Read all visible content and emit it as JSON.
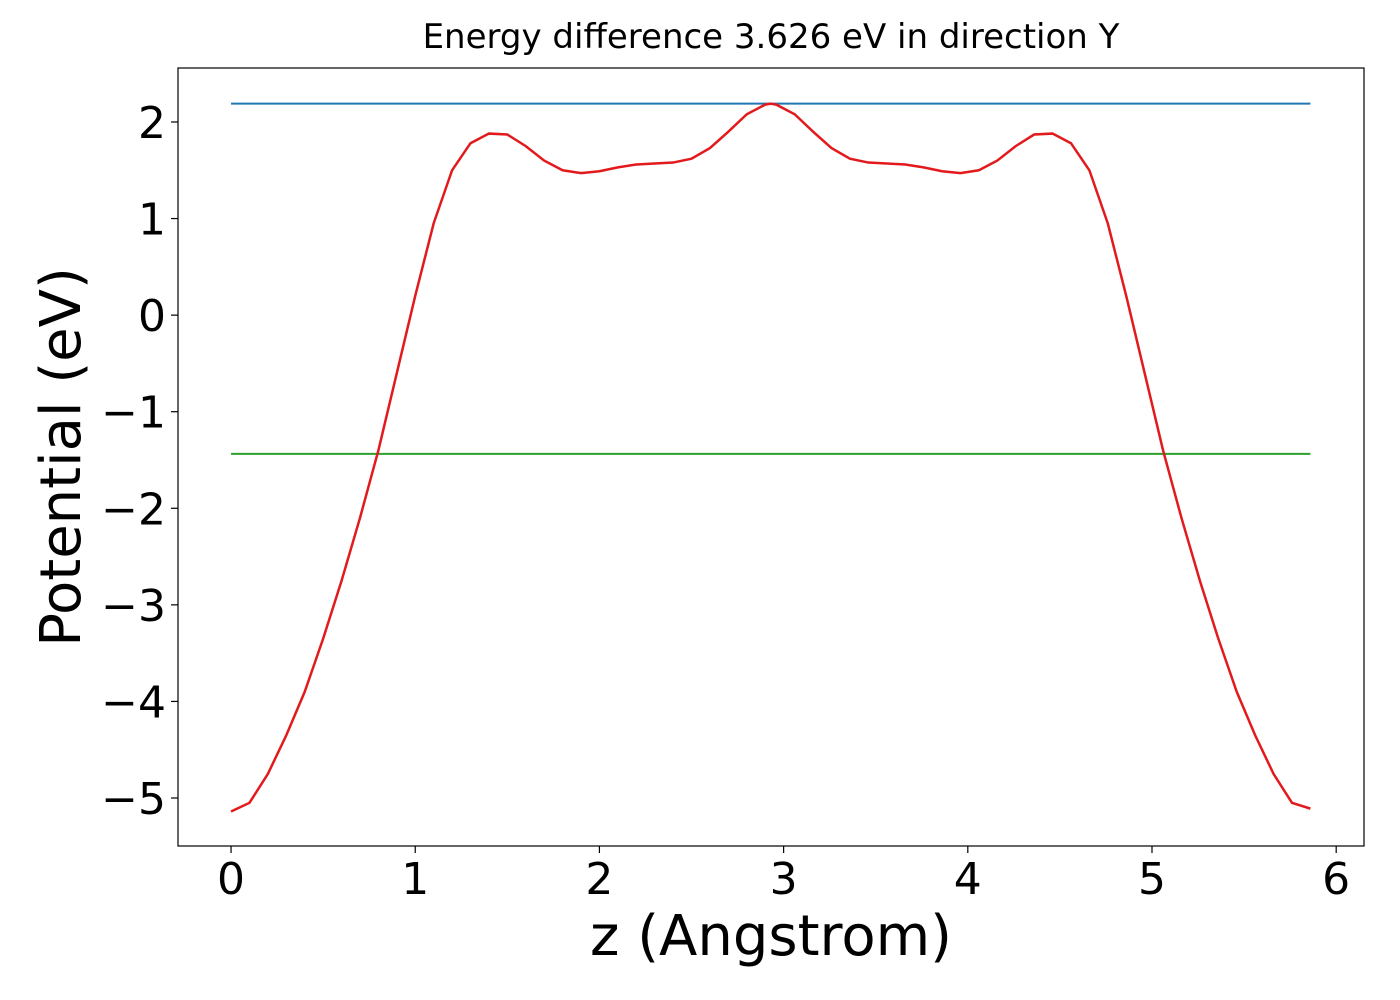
{
  "chart_data": {
    "type": "line",
    "title": "Energy difference 3.626 eV in direction Y",
    "xlabel": "z (Angstrom)",
    "ylabel": "Potential (eV)",
    "x": [
      0,
      0.1,
      0.2,
      0.3,
      0.4,
      0.5,
      0.6,
      0.7,
      0.8,
      0.9,
      1.0,
      1.1,
      1.2,
      1.3,
      1.4,
      1.5,
      1.6,
      1.7,
      1.8,
      1.9,
      2.0,
      2.1,
      2.2,
      2.3,
      2.4,
      2.5,
      2.6,
      2.7,
      2.8,
      2.9,
      2.93,
      2.96,
      3.06,
      3.16,
      3.26,
      3.36,
      3.46,
      3.56,
      3.66,
      3.76,
      3.86,
      3.96,
      4.06,
      4.16,
      4.26,
      4.36,
      4.46,
      4.56,
      4.66,
      4.76,
      4.86,
      4.96,
      5.06,
      5.16,
      5.26,
      5.36,
      5.46,
      5.56,
      5.66,
      5.76,
      5.86
    ],
    "series": [
      {
        "color": "#1f77b4",
        "x": [
          0,
          5.86
        ],
        "values": [
          2.19,
          2.19
        ]
      },
      {
        "color": "#2ca02c",
        "x": [
          0,
          5.86
        ],
        "values": [
          -1.436,
          -1.436
        ]
      },
      {
        "color": "#e31a1c",
        "values": [
          -5.14,
          -5.05,
          -4.75,
          -4.35,
          -3.9,
          -3.35,
          -2.75,
          -2.1,
          -1.4,
          -0.6,
          0.2,
          0.95,
          1.5,
          1.78,
          1.88,
          1.87,
          1.75,
          1.6,
          1.5,
          1.47,
          1.49,
          1.53,
          1.56,
          1.57,
          1.58,
          1.62,
          1.73,
          1.9,
          2.08,
          2.18,
          2.19,
          2.18,
          2.08,
          1.9,
          1.73,
          1.62,
          1.58,
          1.57,
          1.56,
          1.53,
          1.49,
          1.47,
          1.5,
          1.6,
          1.75,
          1.87,
          1.88,
          1.78,
          1.5,
          0.95,
          0.2,
          -0.6,
          -1.4,
          -2.1,
          -2.75,
          -3.35,
          -3.9,
          -4.35,
          -4.75,
          -5.05,
          -5.11
        ]
      }
    ],
    "xlim": [
      -0.288,
      6.151
    ],
    "ylim": [
      -5.497,
      2.559
    ],
    "xticks": [
      0,
      1,
      2,
      3,
      4,
      5,
      6
    ],
    "yticks": [
      {
        "value": -5,
        "label": "−5"
      },
      {
        "value": -4,
        "label": "−4"
      },
      {
        "value": -3,
        "label": "−3"
      },
      {
        "value": -2,
        "label": "−2"
      },
      {
        "value": -1,
        "label": "−1"
      },
      0,
      1,
      2
    ]
  }
}
